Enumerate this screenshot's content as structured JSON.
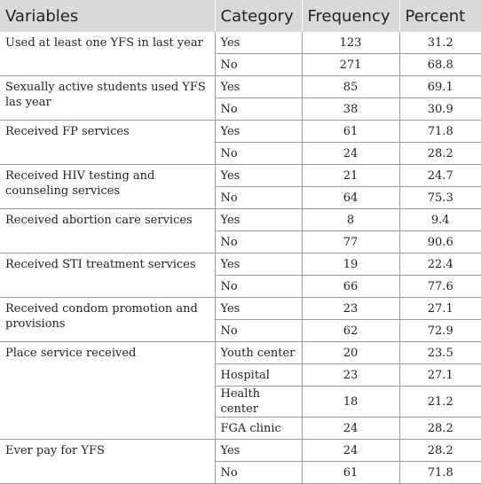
{
  "headers": [
    "Variables",
    "Category",
    "Frequency",
    "Percent"
  ],
  "groups": [
    {
      "variable": "Used at least one YFS in last year",
      "rows": [
        {
          "category": "Yes",
          "frequency": "123",
          "percent": "31.2"
        },
        {
          "category": "No",
          "frequency": "271",
          "percent": "68.8"
        }
      ]
    },
    {
      "variable": "Sexually active students used YFS las year",
      "rows": [
        {
          "category": "Yes",
          "frequency": "85",
          "percent": "69.1"
        },
        {
          "category": "No",
          "frequency": "38",
          "percent": "30.9"
        }
      ]
    },
    {
      "variable": "Received FP services",
      "rows": [
        {
          "category": "Yes",
          "frequency": "61",
          "percent": "71.8"
        },
        {
          "category": "No",
          "frequency": "24",
          "percent": "28.2"
        }
      ]
    },
    {
      "variable": "Received HIV testing and counseling services",
      "rows": [
        {
          "category": "Yes",
          "frequency": "21",
          "percent": "24.7"
        },
        {
          "category": "No",
          "frequency": "64",
          "percent": "75.3"
        }
      ]
    },
    {
      "variable": "Received abortion care services",
      "rows": [
        {
          "category": "Yes",
          "frequency": "8",
          "percent": "9.4"
        },
        {
          "category": "No",
          "frequency": "77",
          "percent": "90.6"
        }
      ]
    },
    {
      "variable": "Received STI treatment services",
      "rows": [
        {
          "category": "Yes",
          "frequency": "19",
          "percent": "22.4"
        },
        {
          "category": "No",
          "frequency": "66",
          "percent": "77.6"
        }
      ]
    },
    {
      "variable": "Received condom promotion and provisions",
      "rows": [
        {
          "category": "Yes",
          "frequency": "23",
          "percent": "27.1"
        },
        {
          "category": "No",
          "frequency": "62",
          "percent": "72.9"
        }
      ]
    },
    {
      "variable": "Place service received",
      "rows": [
        {
          "category": "Youth center",
          "frequency": "20",
          "percent": "23.5"
        },
        {
          "category": "Hospital",
          "frequency": "23",
          "percent": "27.1"
        },
        {
          "category": "Health center",
          "frequency": "18",
          "percent": "21.2"
        },
        {
          "category": "FGA clinic",
          "frequency": "24",
          "percent": "28.2"
        }
      ]
    },
    {
      "variable": "Ever pay for YFS",
      "rows": [
        {
          "category": "Yes",
          "frequency": "24",
          "percent": "28.2"
        },
        {
          "category": "No",
          "frequency": "61",
          "percent": "71.8"
        }
      ]
    }
  ]
}
